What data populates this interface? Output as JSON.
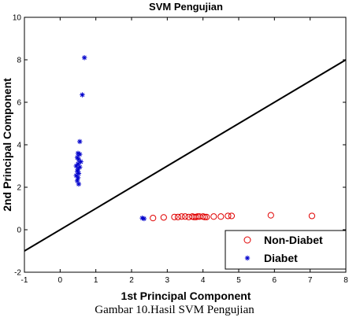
{
  "caption": "Gambar 10.Hasil SVM Pengujian",
  "chart_data": {
    "type": "scatter",
    "title": "SVM Pengujian",
    "xlabel": "1st Principal Component",
    "ylabel": "2nd Principal Component",
    "xlim": [
      -1,
      8
    ],
    "ylim": [
      -2,
      10
    ],
    "xticks": [
      "-1",
      "0",
      "1",
      "2",
      "3",
      "4",
      "5",
      "6",
      "7",
      "8"
    ],
    "yticks": [
      "-2",
      "0",
      "2",
      "4",
      "6",
      "8",
      "10"
    ],
    "grid": false,
    "legend_position": "bottom-right",
    "boundary": {
      "name": "",
      "x": [
        -1,
        8
      ],
      "y": [
        -1.0,
        8.0
      ],
      "color": "#000000"
    },
    "series": [
      {
        "name": "Non-Diabet",
        "marker": "circle",
        "color": "#e00000",
        "points": [
          [
            2.6,
            0.55
          ],
          [
            2.9,
            0.58
          ],
          [
            3.2,
            0.6
          ],
          [
            3.3,
            0.6
          ],
          [
            3.4,
            0.62
          ],
          [
            3.5,
            0.62
          ],
          [
            3.6,
            0.6
          ],
          [
            3.7,
            0.62
          ],
          [
            3.75,
            0.6
          ],
          [
            3.8,
            0.6
          ],
          [
            3.85,
            0.62
          ],
          [
            3.9,
            0.62
          ],
          [
            4.0,
            0.62
          ],
          [
            4.05,
            0.6
          ],
          [
            4.1,
            0.6
          ],
          [
            4.3,
            0.62
          ],
          [
            4.5,
            0.62
          ],
          [
            4.7,
            0.65
          ],
          [
            4.8,
            0.65
          ],
          [
            5.9,
            0.68
          ],
          [
            7.05,
            0.65
          ]
        ]
      },
      {
        "name": "Diabet",
        "marker": "star",
        "color": "#0000cc",
        "points": [
          [
            0.68,
            8.1
          ],
          [
            0.62,
            6.35
          ],
          [
            0.55,
            4.15
          ],
          [
            0.5,
            3.6
          ],
          [
            0.55,
            3.55
          ],
          [
            0.48,
            3.4
          ],
          [
            0.52,
            3.3
          ],
          [
            0.58,
            3.2
          ],
          [
            0.5,
            3.1
          ],
          [
            0.45,
            3.0
          ],
          [
            0.55,
            2.95
          ],
          [
            0.5,
            2.85
          ],
          [
            0.48,
            2.75
          ],
          [
            0.52,
            2.65
          ],
          [
            0.45,
            2.55
          ],
          [
            0.5,
            2.45
          ],
          [
            0.48,
            2.3
          ],
          [
            0.52,
            2.15
          ],
          [
            2.3,
            0.55
          ],
          [
            2.35,
            0.52
          ]
        ]
      }
    ]
  }
}
